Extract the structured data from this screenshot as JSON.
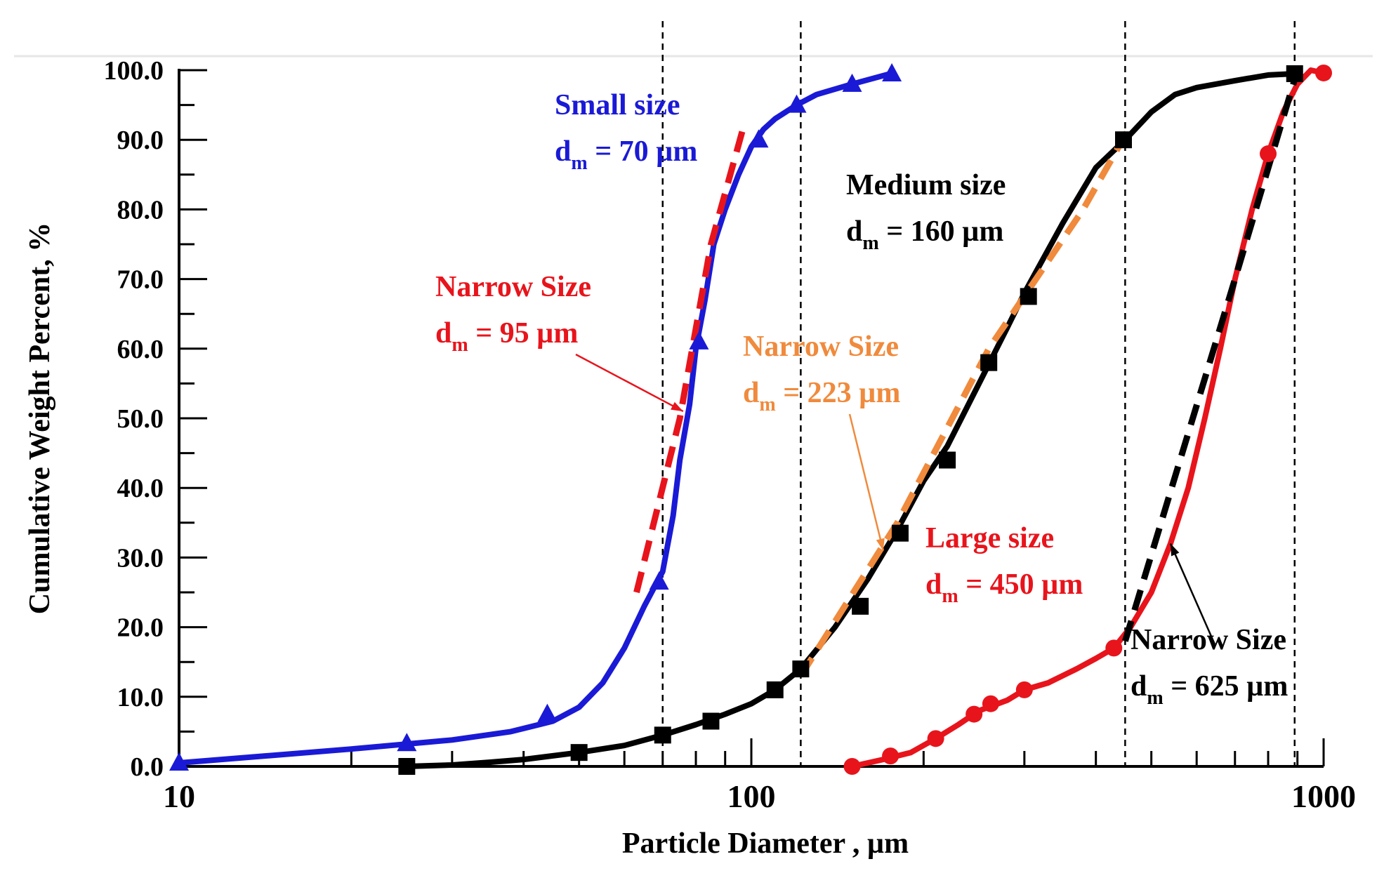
{
  "chart_data": {
    "type": "line",
    "x_scale": "log",
    "xlabel": "Particle Diameter , µm",
    "ylabel": "Cumulative Weight Percent, %",
    "xlim": [
      10,
      1000
    ],
    "ylim": [
      0,
      100
    ],
    "x_ticks": [
      {
        "value": 10,
        "label": "10"
      },
      {
        "value": 100,
        "label": "100"
      },
      {
        "value": 1000,
        "label": "1000"
      }
    ],
    "y_ticks": [
      {
        "value": 0,
        "label": "0.0"
      },
      {
        "value": 10,
        "label": "10.0"
      },
      {
        "value": 20,
        "label": "20.0"
      },
      {
        "value": 30,
        "label": "30.0"
      },
      {
        "value": 40,
        "label": "40.0"
      },
      {
        "value": 50,
        "label": "50.0"
      },
      {
        "value": 60,
        "label": "60.0"
      },
      {
        "value": 70,
        "label": "70.0"
      },
      {
        "value": 80,
        "label": "80.0"
      },
      {
        "value": 90,
        "label": "90.0"
      },
      {
        "value": 100,
        "label": "100.0"
      }
    ],
    "vlines": [
      70,
      122,
      450,
      890
    ],
    "series": [
      {
        "name": "Small size",
        "color": "#1a1ad6",
        "marker": "triangle",
        "line": [
          [
            10,
            0.5
          ],
          [
            20,
            2.5
          ],
          [
            30,
            3.8
          ],
          [
            38,
            5
          ],
          [
            45,
            6.5
          ],
          [
            50,
            8.5
          ],
          [
            55,
            12
          ],
          [
            60,
            17
          ],
          [
            65,
            23
          ],
          [
            70,
            28
          ],
          [
            73,
            36
          ],
          [
            75,
            44
          ],
          [
            78,
            52
          ],
          [
            80,
            60
          ],
          [
            83,
            67
          ],
          [
            86,
            75
          ],
          [
            90,
            80
          ],
          [
            95,
            85
          ],
          [
            100,
            89
          ],
          [
            105,
            91.5
          ],
          [
            110,
            93
          ],
          [
            120,
            95
          ],
          [
            130,
            96.5
          ],
          [
            150,
            98
          ],
          [
            175,
            99.5
          ]
        ],
        "points": [
          [
            10,
            0.5
          ],
          [
            25,
            3.3
          ],
          [
            44,
            7.5
          ],
          [
            69,
            26.5
          ],
          [
            81,
            61
          ],
          [
            103,
            90
          ],
          [
            120,
            95
          ],
          [
            150,
            98
          ],
          [
            176,
            99.5
          ]
        ]
      },
      {
        "name": "Medium size",
        "color": "#000000",
        "marker": "square",
        "line": [
          [
            25,
            0
          ],
          [
            30,
            0.2
          ],
          [
            35,
            0.6
          ],
          [
            40,
            1
          ],
          [
            50,
            2
          ],
          [
            60,
            3
          ],
          [
            70,
            4.5
          ],
          [
            80,
            6
          ],
          [
            90,
            7.5
          ],
          [
            100,
            9
          ],
          [
            110,
            11
          ],
          [
            122,
            14
          ],
          [
            140,
            20
          ],
          [
            160,
            27
          ],
          [
            180,
            34
          ],
          [
            200,
            41
          ],
          [
            220,
            46
          ],
          [
            250,
            55
          ],
          [
            280,
            63
          ],
          [
            300,
            68
          ],
          [
            350,
            78
          ],
          [
            400,
            86
          ],
          [
            450,
            90
          ],
          [
            500,
            94
          ],
          [
            550,
            96.5
          ],
          [
            600,
            97.5
          ],
          [
            700,
            98.5
          ],
          [
            800,
            99.3
          ],
          [
            890,
            99.5
          ]
        ],
        "points": [
          [
            25,
            0
          ],
          [
            50,
            2
          ],
          [
            70,
            4.5
          ],
          [
            85,
            6.5
          ],
          [
            110,
            11
          ],
          [
            122,
            14
          ],
          [
            155,
            23
          ],
          [
            182,
            33.5
          ],
          [
            220,
            44
          ],
          [
            260,
            58
          ],
          [
            305,
            67.5
          ],
          [
            447,
            90
          ],
          [
            890,
            99.5
          ]
        ]
      },
      {
        "name": "Large size",
        "color": "#e8141c",
        "marker": "circle",
        "line": [
          [
            150,
            0
          ],
          [
            170,
            1
          ],
          [
            190,
            2
          ],
          [
            210,
            4
          ],
          [
            230,
            6
          ],
          [
            250,
            8
          ],
          [
            280,
            9.5
          ],
          [
            300,
            11
          ],
          [
            330,
            12
          ],
          [
            370,
            14
          ],
          [
            400,
            15.5
          ],
          [
            430,
            17
          ],
          [
            460,
            20
          ],
          [
            500,
            25
          ],
          [
            540,
            32
          ],
          [
            580,
            40
          ],
          [
            620,
            50
          ],
          [
            660,
            60
          ],
          [
            700,
            70
          ],
          [
            750,
            80
          ],
          [
            800,
            88
          ],
          [
            850,
            94
          ],
          [
            900,
            98
          ],
          [
            950,
            100
          ],
          [
            1000,
            99.6
          ]
        ],
        "points": [
          [
            150,
            0
          ],
          [
            175,
            1.5
          ],
          [
            210,
            4
          ],
          [
            245,
            7.5
          ],
          [
            262,
            9
          ],
          [
            300,
            11
          ],
          [
            430,
            17
          ],
          [
            800,
            88
          ],
          [
            1000,
            99.6
          ]
        ]
      },
      {
        "name": "Narrow Size dm = 95 µm",
        "color": "#e8141c",
        "style": "dashed",
        "line": [
          [
            63,
            25
          ],
          [
            75,
            50
          ],
          [
            85,
            75
          ],
          [
            97,
            92
          ]
        ]
      },
      {
        "name": "Narrow Size dm = 223 µm",
        "color": "#f08a3c",
        "style": "dashed",
        "line": [
          [
            122,
            13
          ],
          [
            180,
            35
          ],
          [
            260,
            60
          ],
          [
            380,
            80
          ],
          [
            460,
            92
          ]
        ]
      },
      {
        "name": "Narrow Size dm = 625 µm",
        "color": "#000000",
        "style": "dashed",
        "line": [
          [
            450,
            18
          ],
          [
            700,
            70
          ],
          [
            900,
            100
          ]
        ]
      }
    ],
    "annotations": [
      {
        "id": "small",
        "line1": "Small size",
        "line2": "d",
        "sub": "m",
        "line2_rest": " = 70 µm",
        "color": "#1a1ad6"
      },
      {
        "id": "medium",
        "line1": "Medium size",
        "line2": "d",
        "sub": "m",
        "line2_rest": " = 160 µm",
        "color": "#000000"
      },
      {
        "id": "narrow95",
        "line1": "Narrow Size",
        "line2": "d",
        "sub": "m",
        "line2_rest": " = 95 µm",
        "color": "#e8141c"
      },
      {
        "id": "narrow223",
        "line1": "Narrow Size",
        "line2": "d",
        "sub": "m",
        "line2_rest": " = 223 µm",
        "color": "#f08a3c"
      },
      {
        "id": "large",
        "line1": "Large size",
        "line2": "d",
        "sub": "m",
        "line2_rest": " = 450 µm",
        "color": "#e8141c"
      },
      {
        "id": "narrow625",
        "line1": "Narrow Size",
        "line2": "d",
        "sub": "m",
        "line2_rest": " = 625 µm",
        "color": "#000000"
      }
    ]
  }
}
